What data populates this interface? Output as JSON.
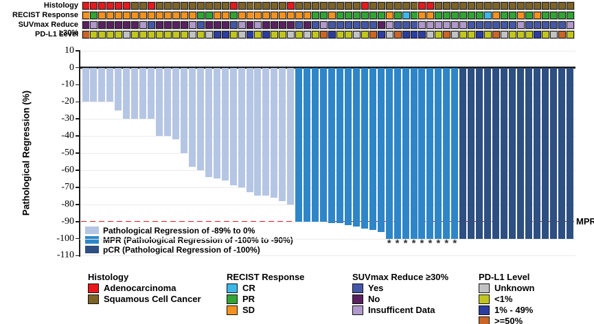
{
  "chart_data": {
    "type": "bar",
    "title": "",
    "ylabel": "Pathological Regression (%)",
    "unit": "%",
    "ylim": [
      -110,
      10
    ],
    "grid": true,
    "yticks": [
      10,
      0,
      -10,
      -20,
      -30,
      -40,
      -50,
      -60,
      -70,
      -80,
      -90,
      -100,
      -110
    ],
    "series_groups": [
      {
        "name": "Pathological Regression of -89% to 0%",
        "color": "#b5c6e4",
        "count": 26
      },
      {
        "name": "MPR (Pathological Regression of -100% to -90%)",
        "color": "#2e86c8",
        "count": 20
      },
      {
        "name": "pCR (Pathological Regression of -100%)",
        "color": "#2d4f81",
        "count": 14
      }
    ],
    "values": [
      -20,
      -20,
      -20,
      -20,
      -25,
      -30,
      -30,
      -30,
      -30,
      -40,
      -40,
      -42,
      -50,
      -58,
      -60,
      -64,
      -65,
      -66,
      -69,
      -70,
      -73,
      -75,
      -75,
      -76,
      -78,
      -80,
      -90,
      -90,
      -90,
      -90,
      -91,
      -91,
      -92,
      -93,
      -94,
      -95,
      -96,
      -100,
      -100,
      -100,
      -100,
      -100,
      -100,
      -100,
      -100,
      -100,
      -100,
      -100,
      -100,
      -100,
      -100,
      -100,
      -100,
      -100,
      -100,
      -100,
      -100,
      -100,
      -100,
      -100
    ],
    "asterisk_bars": [
      38,
      39,
      40,
      41,
      42,
      43,
      44,
      45,
      46
    ],
    "reference_line": {
      "value": -90,
      "label": "MPR",
      "color": "#e82127"
    }
  },
  "annotation_tracks": [
    {
      "label": "Histology",
      "values": [
        "A",
        "A",
        "A",
        "A",
        "A",
        "A",
        "S",
        "S",
        "A",
        "S",
        "S",
        "S",
        "S",
        "S",
        "S",
        "S",
        "S",
        "S",
        "A",
        "S",
        "S",
        "S",
        "S",
        "S",
        "S",
        "A",
        "S",
        "S",
        "S",
        "S",
        "S",
        "S",
        "S",
        "S",
        "A",
        "S",
        "S",
        "S",
        "S",
        "S",
        "S",
        "A",
        "A",
        "S",
        "S",
        "S",
        "S",
        "S",
        "S",
        "S",
        "S",
        "S",
        "S",
        "S",
        "S",
        "S",
        "S",
        "S",
        "S",
        "S"
      ]
    },
    {
      "label": "RECIST Response",
      "values": [
        "O",
        "G",
        "O",
        "O",
        "O",
        "O",
        "O",
        "O",
        "O",
        "O",
        "O",
        "O",
        "O",
        "O",
        "G",
        "G",
        "O",
        "O",
        "G",
        "O",
        "O",
        "O",
        "O",
        "O",
        "O",
        "O",
        "O",
        "O",
        "G",
        "G",
        "O",
        "G",
        "G",
        "G",
        "G",
        "G",
        "G",
        "O",
        "G",
        "C",
        "G",
        "O",
        "O",
        "G",
        "G",
        "G",
        "G",
        "G",
        "G",
        "C",
        "O",
        "G",
        "G",
        "O",
        "G",
        "O",
        "G",
        "G",
        "G",
        "G"
      ]
    },
    {
      "label": "SUVmax Reduce ≥30%",
      "values": [
        "N",
        "I",
        "N",
        "N",
        "N",
        "N",
        "N",
        "I",
        "B",
        "N",
        "N",
        "N",
        "N",
        "I",
        "B",
        "N",
        "N",
        "N",
        "B",
        "I",
        "N",
        "I",
        "N",
        "N",
        "N",
        "N",
        "B",
        "N",
        "B",
        "I",
        "B",
        "B",
        "B",
        "B",
        "B",
        "B",
        "N",
        "I",
        "B",
        "B",
        "B",
        "I",
        "I",
        "I",
        "I",
        "I",
        "I",
        "B",
        "B",
        "B",
        "B",
        "B",
        "B",
        "I",
        "B",
        "B",
        "B",
        "B",
        "B",
        "I"
      ]
    },
    {
      "label": "PD-L1 Level",
      "values": [
        "O",
        "Y",
        "Y",
        "Y",
        "Y",
        "U",
        "Y",
        "Y",
        "Y",
        "Y",
        "Y",
        "Y",
        "Y",
        "U",
        "Y",
        "U",
        "B",
        "B",
        "Y",
        "U",
        "B",
        "Y",
        "B",
        "Y",
        "Y",
        "U",
        "Y",
        "U",
        "Y",
        "O",
        "B",
        "Y",
        "Y",
        "U",
        "Y",
        "O",
        "B",
        "U",
        "O",
        "B",
        "B",
        "B",
        "U",
        "Y",
        "O",
        "U",
        "Y",
        "Y",
        "B",
        "Y",
        "O",
        "U",
        "Y",
        "Y",
        "Y",
        "B",
        "Y",
        "U",
        "O",
        "Y"
      ]
    }
  ],
  "legend_groups": [
    {
      "title": "Histology",
      "items": [
        {
          "code": "A",
          "label": "Adenocarcinoma",
          "color": "#e8191d"
        },
        {
          "code": "S",
          "label": "Squamous Cell Cancer",
          "color": "#7e6327"
        }
      ]
    },
    {
      "title": "RECIST Response",
      "items": [
        {
          "code": "C",
          "label": "CR",
          "color": "#3db7e8"
        },
        {
          "code": "G",
          "label": "PR",
          "color": "#31a433"
        },
        {
          "code": "O",
          "label": "SD",
          "color": "#f5921f"
        }
      ]
    },
    {
      "title": "SUVmax Reduce ≥30%",
      "items": [
        {
          "code": "B",
          "label": "Yes",
          "color": "#4558a7"
        },
        {
          "code": "N",
          "label": "No",
          "color": "#5a2161"
        },
        {
          "code": "I",
          "label": "Insufficent Data",
          "color": "#b199cb"
        }
      ]
    },
    {
      "title": "PD-L1 Level",
      "items": [
        {
          "code": "U",
          "label": "Unknown",
          "color": "#c2c2c2"
        },
        {
          "code": "Y",
          "label": "<1%",
          "color": "#c1c61e"
        },
        {
          "code": "B",
          "label": "1% - 49%",
          "color": "#2c3da0"
        },
        {
          "code": "O",
          "label": ">=50%",
          "color": "#ca6526"
        }
      ]
    }
  ]
}
